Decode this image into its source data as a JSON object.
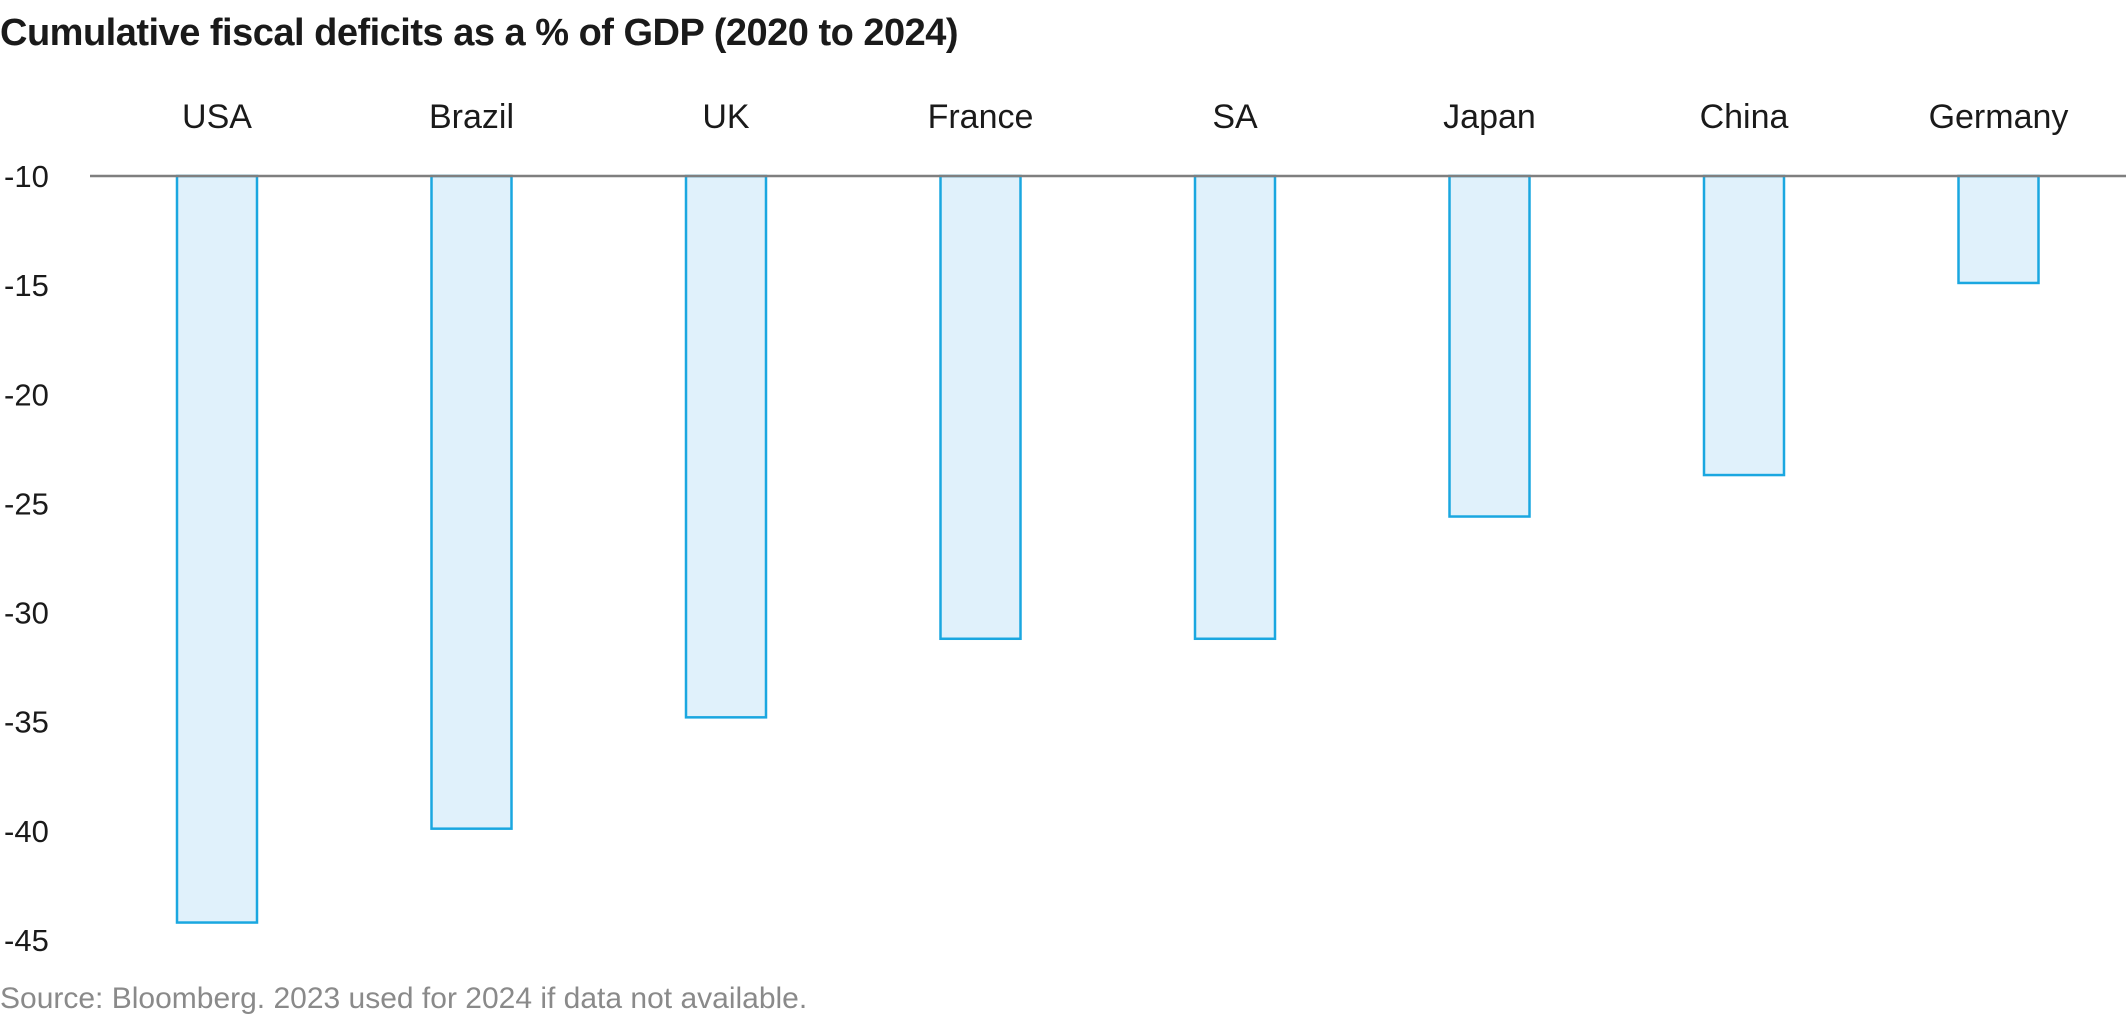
{
  "title": "Cumulative fiscal deficits as a % of GDP (2020 to 2024)",
  "source": "Source: Bloomberg. 2023 used for 2024 if data not available.",
  "colors": {
    "bar_fill": "#e0f1fb",
    "bar_stroke": "#1aa7e0",
    "axis_line": "#7f7f7f",
    "text": "#1a1a1a",
    "source_text": "#8a8a8a"
  },
  "chart_data": {
    "type": "bar",
    "orientation": "vertical",
    "categories": [
      "USA",
      "Brazil",
      "UK",
      "France",
      "SA",
      "Japan",
      "China",
      "Germany"
    ],
    "values": [
      -44.2,
      -39.9,
      -34.8,
      -31.2,
      -31.2,
      -25.6,
      -23.7,
      -14.9
    ],
    "baseline": -10,
    "ylim": [
      -45,
      -10
    ],
    "yticks": [
      -10,
      -15,
      -20,
      -25,
      -30,
      -35,
      -40,
      -45
    ],
    "ytick_labels": [
      "-10",
      "-15",
      "-20",
      "-25",
      "-30",
      "-35",
      "-40",
      "-45"
    ],
    "category_label_position": "top",
    "grid": false,
    "legend": false,
    "xlabel": "",
    "ylabel": ""
  }
}
